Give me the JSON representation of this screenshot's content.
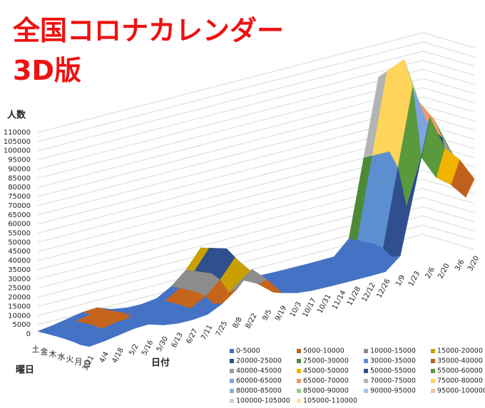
{
  "chart_data": {
    "type": "surface",
    "title": "全国コロナカレンダー",
    "subtitle": "3D版",
    "y_label": "人数",
    "x_label": "日付",
    "depth_label": "曜日",
    "grid": true,
    "categories": [
      "3/21",
      "4/4",
      "4/18",
      "5/2",
      "5/16",
      "5/30",
      "6/13",
      "6/27",
      "7/11",
      "7/25",
      "8/8",
      "8/22",
      "9/5",
      "9/19",
      "10/3",
      "10/17",
      "10/31",
      "11/14",
      "11/28",
      "12/12",
      "12/26",
      "1/9",
      "1/23",
      "2/6",
      "2/20",
      "3/6",
      "3/20"
    ],
    "series": [
      {
        "name": "日",
        "values": [
          1300,
          2100,
          3400,
          4700,
          5100,
          2600,
          1400,
          1300,
          2100,
          6000,
          11900,
          20400,
          12800,
          3400,
          1300,
          400,
          200,
          130,
          100,
          130,
          260,
          6800,
          42500,
          78200,
          59500,
          51000,
          38300
        ]
      },
      {
        "name": "月",
        "values": [
          900,
          1500,
          2400,
          3300,
          3600,
          1800,
          1000,
          900,
          1500,
          4200,
          8400,
          14400,
          9000,
          2400,
          900,
          300,
          150,
          90,
          70,
          90,
          180,
          4800,
          30000,
          55200,
          42000,
          36000,
          27000
        ]
      },
      {
        "name": "火",
        "values": [
          1500,
          2500,
          4000,
          5500,
          6000,
          3000,
          1700,
          1500,
          2500,
          7000,
          14000,
          24000,
          15000,
          4000,
          1500,
          500,
          250,
          150,
          120,
          150,
          300,
          8000,
          50000,
          92000,
          70000,
          60000,
          45000
        ]
      },
      {
        "name": "水",
        "values": [
          1700,
          2900,
          4600,
          6300,
          6900,
          3500,
          2000,
          1700,
          2900,
          8100,
          16100,
          27600,
          17300,
          4600,
          1700,
          580,
          290,
          170,
          140,
          170,
          350,
          9200,
          57500,
          105800,
          80500,
          69000,
          51800
        ]
      },
      {
        "name": "木",
        "values": [
          1700,
          2800,
          4400,
          6100,
          6600,
          3300,
          1900,
          1700,
          2800,
          7700,
          15400,
          26400,
          16500,
          4400,
          1700,
          550,
          280,
          170,
          130,
          170,
          330,
          8800,
          55000,
          101200,
          77000,
          66000,
          49500
        ]
      },
      {
        "name": "金",
        "values": [
          1600,
          2600,
          4200,
          5800,
          6300,
          3200,
          1800,
          1600,
          2600,
          7400,
          14700,
          25200,
          15800,
          4200,
          1600,
          530,
          260,
          160,
          130,
          160,
          320,
          8400,
          52500,
          96600,
          73500,
          63000,
          47300
        ]
      },
      {
        "name": "土",
        "values": [
          1500,
          2500,
          4000,
          5500,
          6000,
          3000,
          1700,
          1500,
          2500,
          7000,
          14000,
          24000,
          15000,
          4000,
          1500,
          500,
          250,
          150,
          120,
          150,
          300,
          8000,
          50000,
          92000,
          70000,
          60000,
          45000
        ]
      }
    ],
    "ylim": [
      0,
      110000
    ],
    "yticks": [
      0,
      5000,
      10000,
      15000,
      20000,
      25000,
      30000,
      35000,
      40000,
      45000,
      50000,
      55000,
      60000,
      65000,
      70000,
      75000,
      80000,
      85000,
      90000,
      95000,
      100000,
      105000,
      110000
    ],
    "legend": [
      {
        "name": "0-5000",
        "color": "#4472c4"
      },
      {
        "name": "5000-10000",
        "color": "#c5651b"
      },
      {
        "name": "10000-15000",
        "color": "#8c8c8c"
      },
      {
        "name": "15000-20000",
        "color": "#c9a000"
      },
      {
        "name": "20000-25000",
        "color": "#2f4f8f"
      },
      {
        "name": "25000-30000",
        "color": "#4e8a35"
      },
      {
        "name": "30000-35000",
        "color": "#5b8fd0"
      },
      {
        "name": "35000-40000",
        "color": "#c0601c"
      },
      {
        "name": "40000-45000",
        "color": "#9a9a9a"
      },
      {
        "name": "45000-50000",
        "color": "#f0b400"
      },
      {
        "name": "50000-55000",
        "color": "#2a4a90"
      },
      {
        "name": "55000-60000",
        "color": "#5a9a3c"
      },
      {
        "name": "60000-65000",
        "color": "#7ea6dd"
      },
      {
        "name": "65000-70000",
        "color": "#ee9a6a"
      },
      {
        "name": "70000-75000",
        "color": "#b4b4b4"
      },
      {
        "name": "75000-80000",
        "color": "#ffd45a"
      },
      {
        "name": "80000-85000",
        "color": "#8fa9dc"
      },
      {
        "name": "85000-90000",
        "color": "#9dcb7e"
      },
      {
        "name": "90000-95000",
        "color": "#a7c4ec"
      },
      {
        "name": "95000-100000",
        "color": "#f8bfa5"
      },
      {
        "name": "100000-105000",
        "color": "#cfcfcf"
      },
      {
        "name": "105000-110000",
        "color": "#ffe3a0"
      }
    ]
  }
}
